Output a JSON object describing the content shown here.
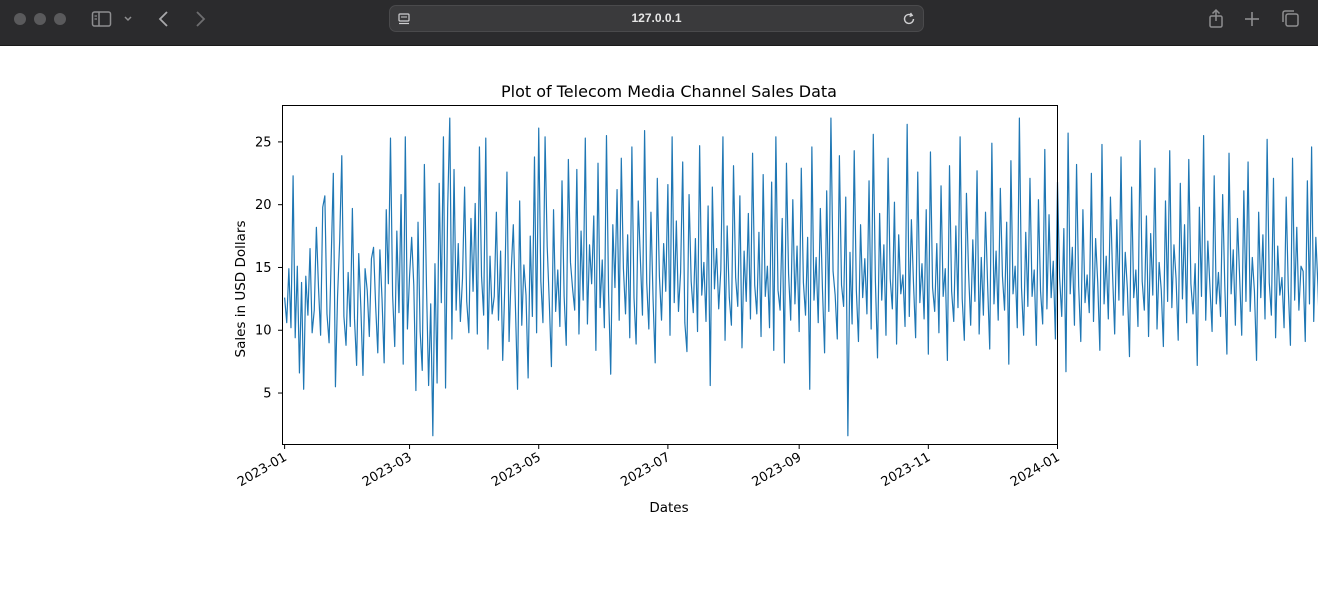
{
  "browser": {
    "address": "127.0.0.1"
  },
  "chart_data": {
    "type": "line",
    "title": "Plot of Telecom Media Channel Sales Data",
    "xlabel": "Dates",
    "ylabel": "Sales in USD Dollars",
    "x_range": [
      "2022-12-31",
      "2024-01-01"
    ],
    "ylim": [
      0.9,
      27.9
    ],
    "x_ticks": [
      "2023-01",
      "2023-03",
      "2023-05",
      "2023-07",
      "2023-09",
      "2023-11",
      "2024-01"
    ],
    "y_ticks": [
      5,
      10,
      15,
      20,
      25
    ],
    "grid": false,
    "line_color": "#1f77b4",
    "series": [
      {
        "values": [
          12.6,
          10.6,
          14.9,
          10.2,
          22.3,
          9.4,
          15.1,
          6.6,
          13.8,
          5.3,
          14.3,
          11.2,
          16.5,
          9.8,
          11.6,
          18.2,
          13.4,
          9.6,
          19.8,
          20.7,
          11.3,
          9.0,
          15.7,
          22.5,
          5.5,
          12.7,
          17.1,
          23.9,
          11.1,
          8.8,
          14.6,
          10.3,
          19.7,
          10.9,
          7.2,
          16.1,
          11.8,
          6.4,
          14.9,
          13.2,
          9.5,
          15.7,
          16.6,
          11.9,
          8.2,
          16.4,
          12.5,
          7.4,
          19.6,
          13.7,
          25.3,
          12.8,
          8.7,
          17.9,
          11.4,
          20.8,
          7.3,
          25.4,
          10.1,
          14.3,
          17.4,
          13.6,
          5.2,
          18.6,
          9.9,
          6.8,
          23.2,
          13.5,
          5.6,
          12.1,
          1.6,
          15.3,
          5.8,
          21.7,
          12.2,
          25.4,
          5.4,
          19.7,
          26.9,
          9.3,
          22.8,
          11.6,
          16.9,
          10.7,
          14.1,
          21.4,
          12.3,
          9.8,
          18.9,
          13.1,
          20.1,
          9.7,
          24.6,
          14.3,
          11.2,
          25.3,
          8.5,
          15.9,
          11.3,
          12.7,
          19.4,
          10.8,
          16.3,
          7.6,
          13.6,
          22.6,
          9.1,
          14.7,
          18.4,
          11.9,
          5.3,
          20.3,
          10.4,
          15.2,
          12.8,
          6.2,
          17.5,
          11.1,
          23.8,
          9.8,
          26.1,
          13.9,
          10.6,
          25.4,
          16.7,
          12.2,
          7.1,
          19.6,
          11.5,
          14.8,
          10.3,
          21.9,
          12.7,
          8.8,
          23.6,
          15.4,
          13.3,
          11.6,
          22.8,
          9.7,
          17.9,
          12.4,
          25.3,
          10.5,
          16.8,
          13.7,
          19.1,
          8.4,
          23.3,
          11.8,
          15.6,
          10.2,
          25.5,
          12.9,
          6.5,
          18.4,
          13.4,
          21.2,
          10.8,
          23.7,
          14.9,
          11.3,
          17.6,
          9.4,
          24.6,
          12.6,
          8.9,
          20.3,
          15.7,
          11.2,
          25.9,
          13.8,
          10.1,
          19.4,
          12.5,
          7.4,
          22.1,
          14.3,
          10.8,
          16.9,
          13.1,
          21.6,
          9.6,
          25.4,
          12.2,
          18.7,
          11.5,
          14.6,
          23.4,
          10.6,
          8.3,
          20.8,
          13.9,
          11.4,
          17.3,
          9.9,
          24.7,
          12.8,
          15.4,
          10.7,
          19.9,
          5.6,
          21.4,
          13.3,
          16.5,
          11.7,
          14.8,
          25.4,
          9.2,
          18.3,
          12.6,
          10.4,
          23.1,
          14.2,
          11.9,
          20.7,
          8.6,
          16.3,
          12.3,
          19.3,
          10.9,
          24.1,
          13.6,
          11.3,
          17.8,
          9.5,
          22.4,
          12.7,
          15.1,
          10.2,
          21.8,
          8.4,
          25.4,
          13.2,
          11.6,
          18.9,
          7.4,
          23.3,
          14.5,
          10.8,
          20.4,
          12.1,
          16.7,
          9.9,
          22.9,
          13.8,
          11.2,
          17.4,
          5.3,
          24.6,
          12.4,
          15.8,
          10.6,
          19.7,
          13.3,
          8.2,
          21.1,
          11.5,
          26.9,
          14.7,
          12.8,
          9.3,
          23.9,
          13.6,
          11.9,
          20.6,
          1.6,
          16.2,
          10.5,
          24.3,
          13.2,
          9.1,
          18.4,
          12.6,
          15.7,
          11.3,
          21.9,
          10.1,
          25.6,
          13.9,
          7.8,
          19.3,
          12.4,
          16.8,
          9.6,
          23.7,
          14.1,
          11.7,
          20.2,
          8.9,
          17.6,
          12.9,
          14.4,
          10.3,
          26.4,
          11.1,
          18.8,
          13.7,
          9.4,
          22.6,
          12.2,
          15.3,
          10.9,
          19.6,
          8.1,
          24.2,
          13.4,
          11.5,
          16.9,
          9.8,
          21.5,
          12.7,
          14.9,
          7.6,
          23.1,
          13.1,
          10.7,
          18.3,
          11.8,
          25.4,
          12.5,
          9.2,
          20.9,
          14.6,
          10.4,
          17.2,
          12.3,
          22.7,
          9.7,
          15.8,
          11.2,
          19.4,
          13.6,
          8.5,
          24.9,
          12.1,
          16.3,
          10.8,
          21.3,
          14.3,
          11.6,
          18.6,
          7.3,
          23.5,
          12.9,
          15.1,
          10.2,
          26.9,
          13.4,
          9.6,
          17.8,
          11.9,
          22.1,
          12.7,
          14.8,
          8.8,
          20.4,
          13.1,
          10.5,
          24.4,
          11.7,
          19.2,
          12.6,
          15.5,
          9.3,
          21.8,
          14.2,
          11.1,
          18.1,
          6.7,
          25.7,
          12.9,
          16.6,
          10.4,
          23.2,
          13.5,
          9.1,
          19.6,
          12.2,
          14.4,
          11.4,
          22.5,
          10.7,
          17.3,
          13.8,
          8.4,
          24.8,
          12.1,
          15.9,
          10.9,
          20.6,
          14.5,
          9.7,
          18.8,
          12.4,
          23.8,
          11.2,
          16.2,
          13.3,
          7.9,
          21.4,
          12.6,
          14.8,
          10.3,
          25.1,
          13.9,
          11.6,
          19.1,
          9.5,
          17.7,
          12.8,
          22.9,
          10.1,
          15.4,
          13.2,
          8.7,
          20.3,
          12.3,
          24.3,
          11.8,
          16.8,
          14.1,
          9.2,
          21.7,
          12.5,
          18.4,
          10.6,
          23.6,
          13.7,
          11.3,
          15.3,
          7.2,
          19.8,
          12.7,
          25.5,
          10.8,
          17.1,
          13.4,
          9.9,
          22.3,
          12.1,
          14.6,
          11.1,
          20.8,
          13.6,
          8.1,
          24.1,
          12.9,
          16.4,
          10.4,
          18.9,
          14.3,
          9.6,
          21.1,
          12.3,
          23.4,
          11.5,
          15.8,
          13.1,
          7.6,
          19.4,
          12.6,
          17.6,
          10.9,
          25.2,
          13.8,
          11.2,
          22.1,
          9.4,
          16.7,
          12.8,
          14.2,
          10.2,
          20.6,
          13.3,
          8.8,
          23.7,
          12.4,
          18.2,
          11.6,
          15.1,
          14.7,
          9.1,
          21.9,
          12.1,
          24.6,
          10.7,
          17.4,
          13.5,
          8.3,
          19.7,
          12.6,
          16.1,
          11.3,
          22.6,
          13.9,
          9.8,
          20.1,
          12.2,
          15.6,
          10.5,
          23.9,
          13.2,
          11.8,
          18.6,
          8.9,
          21.4,
          12.7,
          16.9,
          10.1,
          26.9,
          12.9,
          9.5,
          19.3,
          13.6,
          14.4,
          11.1,
          22.8,
          12.3,
          17.8,
          10.8,
          15.2,
          13.4,
          6.8,
          20.7,
          12.5,
          24.9,
          11.4,
          16.5,
          14.1,
          9.2,
          21.6,
          12.8,
          18.3,
          10.3,
          23.3,
          13.7,
          11.6,
          15.9,
          8.6,
          19.9,
          12.4,
          17.2,
          10.9,
          25.8,
          13.1,
          9.7,
          22.4,
          12.2,
          14.7,
          11.3,
          20.3,
          13.8,
          8.2,
          24.2,
          12.6,
          16.3,
          10.6,
          18.7,
          14.4,
          9.4,
          21.2,
          12.9,
          23.6,
          11.1,
          15.5,
          13.3,
          7.4,
          19.6,
          12.3,
          17.9,
          10.7,
          22.9,
          13.6,
          11.5,
          16.6,
          9.1,
          20.9,
          12.7,
          25.3,
          10.2,
          18.1,
          13.4,
          9.8,
          21.8,
          12.1,
          14.9,
          11.7,
          23.1,
          13.9,
          8.7,
          19.2,
          12.5,
          16.8,
          10.4,
          24.7,
          13.2,
          11.2,
          17.6,
          9.3,
          22.2,
          12.8,
          15.3,
          10.9,
          20.5,
          14.2,
          1.6,
          18.4,
          12.4,
          23.9,
          11.4,
          16.1,
          13.5,
          6.9,
          21.3,
          12.6,
          19.1,
          10.5,
          24.4,
          13.7,
          11.8,
          15.8,
          9.6,
          20.1,
          12.2,
          27.0,
          10.8,
          17.3,
          13.3,
          9.1,
          22.7,
          12.9,
          14.5,
          11.1,
          19.8,
          13.6,
          8.4,
          23.5,
          12.3,
          16.4,
          10.3,
          18.6,
          14.6,
          9.7,
          21.5,
          12.7,
          25.1,
          11.3,
          15.6,
          13.1,
          7.8,
          20.4,
          12.4,
          17.7,
          10.6,
          24.1,
          13.8,
          11.6,
          16.2,
          9.2,
          19.9,
          12.1,
          23.2,
          10.9,
          18.9,
          13.4,
          8.9,
          22.6,
          12.6,
          15.1,
          11.2,
          20.6,
          13.9,
          9.4,
          24.6,
          12.8,
          16.7,
          10.2,
          19.4,
          14.3,
          9.9,
          21.9,
          12.3,
          26.7,
          11.5,
          15.4,
          13.6,
          7.1,
          20.2,
          12.5,
          17.6,
          10.7,
          23.8,
          13.2,
          3.2,
          18.2,
          12.9,
          14.8,
          11.1,
          21.2,
          13.7,
          3.2,
          25.4,
          12.2,
          16.9,
          10.4,
          19.7,
          6.7,
          22.8,
          12.7,
          9.3,
          20.9,
          12.4,
          17.1,
          10.8,
          18.9,
          7.2,
          21.4,
          12.9,
          5.6,
          19.1,
          13.3,
          10.2,
          21.8
        ]
      }
    ]
  }
}
